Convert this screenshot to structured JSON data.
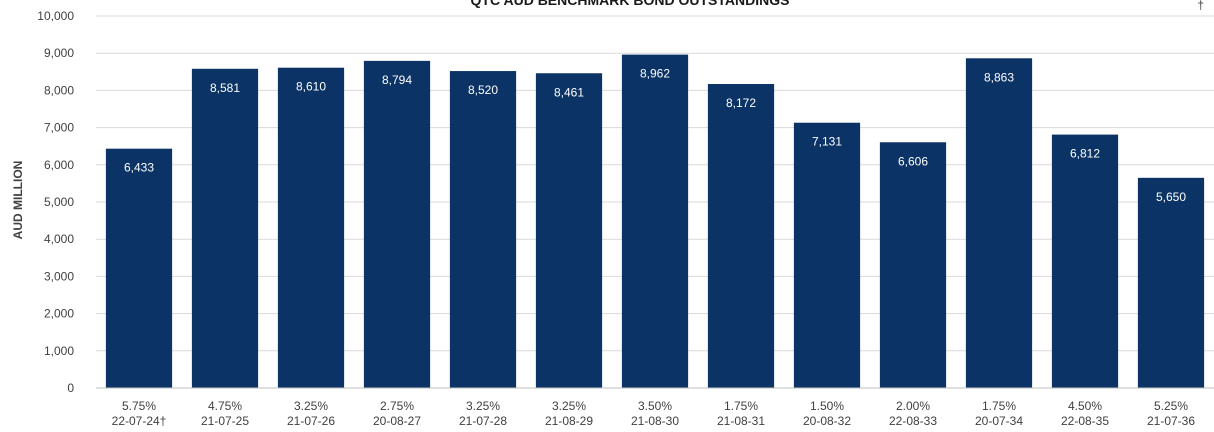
{
  "chart_data": {
    "type": "bar",
    "title": "QTC AUD BENCHMARK BOND OUTSTANDINGS",
    "ylabel": "AUD MILLION",
    "xlabel": "",
    "ylim": [
      0,
      10000
    ],
    "yticks": [
      0,
      1000,
      2000,
      3000,
      4000,
      5000,
      6000,
      7000,
      8000,
      9000,
      10000
    ],
    "ytick_labels": [
      "0",
      "1,000",
      "2,000",
      "3,000",
      "4,000",
      "5,000",
      "6,000",
      "7,000",
      "8,000",
      "9,000",
      "10,000"
    ],
    "grid": true,
    "bar_color": "#0b3366",
    "grid_color": "#d9d9d9",
    "label_color": "#ffffff",
    "categories": [
      {
        "coupon": "5.75%",
        "maturity": "22-07-24†"
      },
      {
        "coupon": "4.75%",
        "maturity": "21-07-25"
      },
      {
        "coupon": "3.25%",
        "maturity": "21-07-26"
      },
      {
        "coupon": "2.75%",
        "maturity": "20-08-27"
      },
      {
        "coupon": "3.25%",
        "maturity": "21-07-28"
      },
      {
        "coupon": "3.25%",
        "maturity": "21-08-29"
      },
      {
        "coupon": "3.50%",
        "maturity": "21-08-30"
      },
      {
        "coupon": "1.75%",
        "maturity": "21-08-31"
      },
      {
        "coupon": "1.50%",
        "maturity": "20-08-32"
      },
      {
        "coupon": "2.00%",
        "maturity": "22-08-33"
      },
      {
        "coupon": "1.75%",
        "maturity": "20-07-34"
      },
      {
        "coupon": "4.50%",
        "maturity": "22-08-35"
      },
      {
        "coupon": "5.25%",
        "maturity": "21-07-36"
      }
    ],
    "values": [
      6433,
      8581,
      8610,
      8794,
      8520,
      8461,
      8962,
      8172,
      7131,
      6606,
      8863,
      6812,
      5650
    ],
    "value_labels": [
      "6,433",
      "8,581",
      "8,610",
      "8,794",
      "8,520",
      "8,461",
      "8,962",
      "8,172",
      "7,131",
      "6,606",
      "8,863",
      "6,812",
      "5,650"
    ]
  },
  "corner_mark": "†"
}
